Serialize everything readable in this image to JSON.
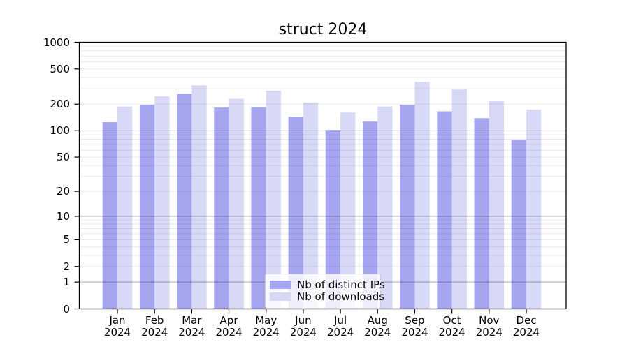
{
  "chart_data": {
    "type": "bar",
    "title": "struct 2024",
    "categories": [
      "Jan 2024",
      "Feb 2024",
      "Mar 2024",
      "Apr 2024",
      "May 2024",
      "Jun 2024",
      "Jul 2024",
      "Aug 2024",
      "Sep 2024",
      "Oct 2024",
      "Nov 2024",
      "Dec 2024"
    ],
    "series": [
      {
        "name": "Nb of distinct IPs",
        "color": "#a5a5f0",
        "values": [
          125,
          197,
          262,
          183,
          185,
          144,
          102,
          127,
          197,
          166,
          139,
          79
        ]
      },
      {
        "name": "Nb of downloads",
        "color": "#d8d8f7",
        "values": [
          188,
          245,
          327,
          230,
          284,
          209,
          161,
          188,
          357,
          293,
          218,
          174
        ]
      }
    ],
    "yscale": "log1p",
    "ylim": [
      0,
      1000
    ],
    "yticks": [
      0,
      1,
      2,
      5,
      10,
      20,
      50,
      100,
      200,
      500,
      1000
    ],
    "xlabel": "",
    "ylabel": "",
    "grid": "both",
    "legend_position": "lower center",
    "axis_color": "#000000",
    "major_grid_color": "rgba(0,0,0,0.32)",
    "minor_grid_color": "rgba(0,0,0,0.08)"
  }
}
